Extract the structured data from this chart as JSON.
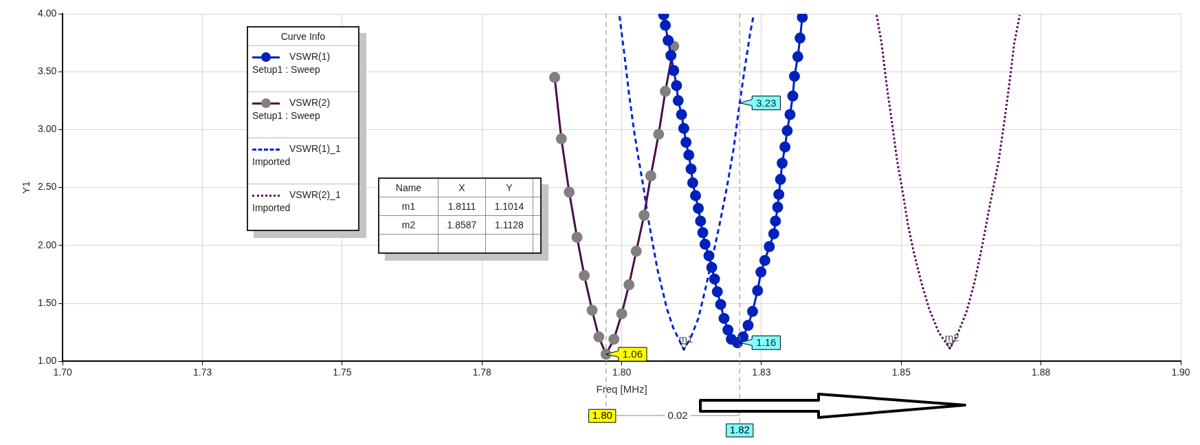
{
  "chart_data": {
    "type": "line",
    "xlabel": "Freq [MHz]",
    "ylabel": "Y1",
    "legend_title": "Curve Info",
    "legend": "top left",
    "grid": true,
    "xlim": [
      1.7,
      1.9
    ],
    "xticks": [
      {
        "value": 1.7,
        "label": "1.70"
      },
      {
        "value": 1.725,
        "label": "1.73"
      },
      {
        "value": 1.75,
        "label": "1.75"
      },
      {
        "value": 1.775,
        "label": "1.78"
      },
      {
        "value": 1.8,
        "label": "1.80"
      },
      {
        "value": 1.825,
        "label": "1.83"
      },
      {
        "value": 1.85,
        "label": "1.85"
      },
      {
        "value": 1.875,
        "label": "1.88"
      },
      {
        "value": 1.9,
        "label": "1.90"
      }
    ],
    "ylim": [
      1,
      4
    ],
    "yticks": [
      {
        "value": 1,
        "label": "1.00"
      },
      {
        "value": 1.5,
        "label": "1.50"
      },
      {
        "value": 2,
        "label": "2.00"
      },
      {
        "value": 2.5,
        "label": "2.50"
      },
      {
        "value": 3,
        "label": "3.00"
      },
      {
        "value": 3.5,
        "label": "3.50"
      },
      {
        "value": 4,
        "label": "4.00"
      }
    ],
    "series": [
      {
        "name": "VSWR(1) Setup1 : Sweep",
        "color": "#0022bb",
        "marker": "circle",
        "line_style": "solid",
        "x": [
          1.8075,
          1.8078,
          1.8083,
          1.8088,
          1.8093,
          1.8098,
          1.8101,
          1.8107,
          1.8111,
          1.8115,
          1.812,
          1.8124,
          1.8127,
          1.8132,
          1.8137,
          1.8141,
          1.8145,
          1.8149,
          1.8156,
          1.8161,
          1.8166,
          1.8171,
          1.8177,
          1.8183,
          1.819,
          1.8196,
          1.8207,
          1.8217,
          1.8226,
          1.8234,
          1.8243,
          1.8249,
          1.8256,
          1.8264,
          1.8272,
          1.8275,
          1.8279,
          1.8281,
          1.8284,
          1.8287,
          1.8292,
          1.8296,
          1.8301,
          1.8306,
          1.8309,
          1.8315,
          1.8319,
          1.8323
        ],
        "values": [
          3.99,
          3.9,
          3.77,
          3.64,
          3.51,
          3.38,
          3.25,
          3.13,
          3.01,
          2.89,
          2.78,
          2.66,
          2.54,
          2.43,
          2.32,
          2.21,
          2.11,
          2.01,
          1.91,
          1.81,
          1.71,
          1.6,
          1.49,
          1.37,
          1.27,
          1.19,
          1.16,
          1.21,
          1.31,
          1.43,
          1.61,
          1.77,
          1.87,
          1.99,
          2.1,
          2.21,
          2.33,
          2.44,
          2.57,
          2.71,
          2.85,
          2.99,
          3.13,
          3.29,
          3.46,
          3.63,
          3.79,
          3.97
        ]
      },
      {
        "name": "VSWR(2) Setup1 : Sweep",
        "color": "#4b0a4b",
        "colors": [
          "#808080",
          "#808080",
          "#808080",
          "#808080",
          "#808080",
          "#808080",
          "#808080",
          "#808080",
          "#808080",
          "#808080",
          "#808080",
          "#808080",
          "#808080",
          "#808080",
          "#808080",
          "#808080",
          "#808080"
        ],
        "marker": "circle",
        "line_style": "solid",
        "x": [
          1.788,
          1.7892,
          1.7906,
          1.792,
          1.7933,
          1.7947,
          1.7959,
          1.7972,
          1.7986,
          1.8,
          1.8013,
          1.8026,
          1.804,
          1.8052,
          1.8066,
          1.8078,
          1.8093
        ],
        "values": [
          3.45,
          2.92,
          2.46,
          2.07,
          1.74,
          1.44,
          1.21,
          1.06,
          1.19,
          1.41,
          1.66,
          1.95,
          2.26,
          2.6,
          2.96,
          3.33,
          3.72
        ]
      },
      {
        "name": "VSWR(1)_1 Imported",
        "color": "#0022dd",
        "marker": "none",
        "line_style": "dashed",
        "x": [
          1.7996,
          1.8005,
          1.8013,
          1.8022,
          1.803,
          1.8039,
          1.8047,
          1.8056,
          1.8064,
          1.8073,
          1.8081,
          1.8092,
          1.8111,
          1.8124,
          1.8137,
          1.8149,
          1.8162,
          1.8175,
          1.8188,
          1.82,
          1.8211,
          1.8221,
          1.823,
          1.8236
        ],
        "values": [
          3.98,
          3.64,
          3.31,
          2.99,
          2.75,
          2.5,
          2.24,
          2.0,
          1.79,
          1.61,
          1.45,
          1.29,
          1.1,
          1.21,
          1.37,
          1.61,
          1.89,
          2.18,
          2.5,
          2.83,
          3.23,
          3.56,
          3.84,
          3.99
        ]
      },
      {
        "name": "VSWR(2)_1 Imported",
        "color": "#5a0a5a",
        "marker": "none",
        "line_style": "dotted",
        "x": [
          1.8456,
          1.8465,
          1.8474,
          1.8484,
          1.8493,
          1.8503,
          1.8512,
          1.8522,
          1.8536,
          1.855,
          1.8567,
          1.8587,
          1.8602,
          1.8617,
          1.8631,
          1.8645,
          1.8659,
          1.8674,
          1.8683,
          1.8693,
          1.8702,
          1.8712
        ],
        "values": [
          3.99,
          3.74,
          3.38,
          3.04,
          2.72,
          2.45,
          2.18,
          1.95,
          1.68,
          1.45,
          1.25,
          1.11,
          1.25,
          1.43,
          1.68,
          2.0,
          2.36,
          2.72,
          3.02,
          3.38,
          3.74,
          3.99
        ]
      }
    ],
    "ref_lines": [
      {
        "axis": "x",
        "value": 1.7972,
        "label": "1.80",
        "color": "#8a8a8a",
        "line_style": "dashed"
      },
      {
        "axis": "x",
        "value": 1.8211,
        "label": "1.82",
        "color": "#8a8a8a",
        "line_style": "dashed"
      }
    ],
    "annotations": [
      {
        "text": "1.06",
        "x": 1.7972,
        "y": 1.06
      },
      {
        "text": "1.16",
        "x": 1.8211,
        "y": 1.16
      },
      {
        "text": "3.23",
        "x": 1.8211,
        "y": 3.23
      },
      {
        "text": "m1",
        "x": 1.8111,
        "y": 1.1
      },
      {
        "text": "m2",
        "x": 1.8587,
        "y": 1.11
      },
      "0.02",
      "Name",
      "X",
      "Y",
      "m1",
      "1.8111",
      "1.1014",
      "m2",
      "1.8587",
      "1.1128"
    ]
  }
}
